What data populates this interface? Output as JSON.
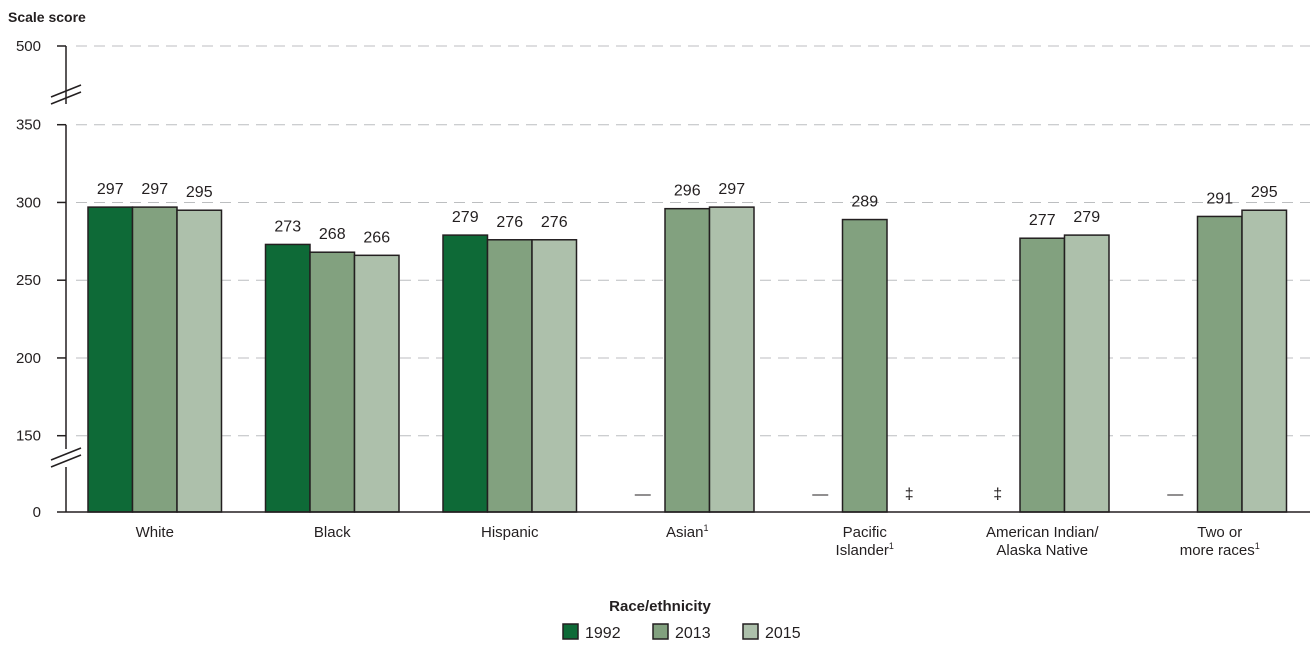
{
  "chart_data": {
    "type": "bar",
    "ylabel": "Scale score",
    "xlabel": "Race/ethnicity",
    "ylim": [
      0,
      500
    ],
    "axis_breaks": [
      [
        0,
        150
      ],
      [
        350,
        500
      ]
    ],
    "yticks": [
      "0",
      "150",
      "200",
      "250",
      "300",
      "350",
      "500"
    ],
    "grid": "dashed horizontal",
    "legend_position": "bottom-center",
    "categories": [
      {
        "lines": [
          "White"
        ],
        "note": ""
      },
      {
        "lines": [
          "Black"
        ],
        "note": ""
      },
      {
        "lines": [
          "Hispanic"
        ],
        "note": ""
      },
      {
        "lines": [
          "Asian"
        ],
        "note": "1"
      },
      {
        "lines": [
          "Pacific",
          "Islander"
        ],
        "note": "1"
      },
      {
        "lines": [
          "American Indian/",
          "Alaska Native"
        ],
        "note": ""
      },
      {
        "lines": [
          "Two or",
          "more races"
        ],
        "note": "1"
      }
    ],
    "series": [
      {
        "name": "1992",
        "color": "#0e6a37",
        "values": [
          297,
          273,
          279,
          null,
          null,
          null,
          null
        ],
        "markers": [
          "",
          "",
          "",
          "—",
          "—",
          "‡",
          "—"
        ]
      },
      {
        "name": "2013",
        "color": "#82a17f",
        "values": [
          297,
          268,
          276,
          296,
          289,
          277,
          291
        ],
        "markers": [
          "",
          "",
          "",
          "",
          "",
          "",
          ""
        ]
      },
      {
        "name": "2015",
        "color": "#adc0ab",
        "values": [
          295,
          266,
          276,
          297,
          null,
          279,
          295
        ],
        "markers": [
          "",
          "",
          "",
          "",
          "‡",
          "",
          ""
        ]
      }
    ]
  }
}
